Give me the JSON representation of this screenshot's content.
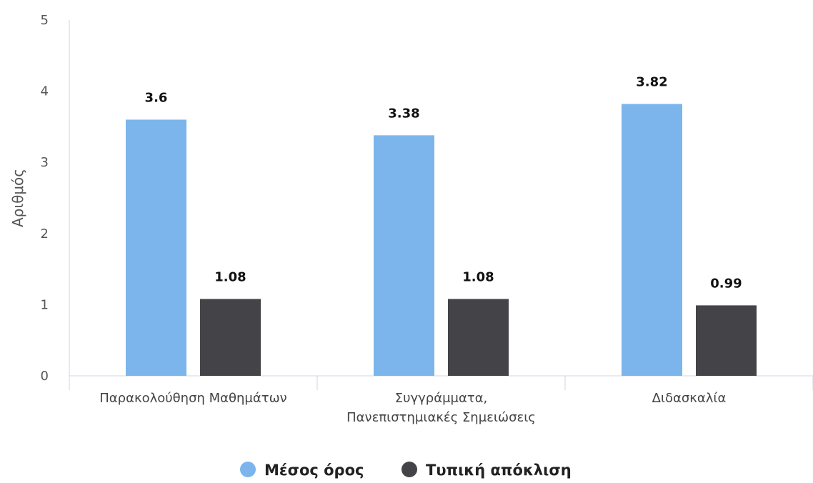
{
  "chart_data": {
    "type": "bar",
    "ylabel": "Αριθμός",
    "ylim": [
      0,
      5
    ],
    "yticks": [
      "0",
      "1",
      "2",
      "3",
      "4",
      "5"
    ],
    "categories": [
      [
        "Παρακολούθηση Μαθημάτων"
      ],
      [
        "Συγγράμματα,",
        "Πανεπιστημιακές Σημειώσεις"
      ],
      [
        "Διδασκαλία"
      ]
    ],
    "series": [
      {
        "name": "Μέσος όρος",
        "color": "#7cb5ec",
        "values": [
          3.6,
          3.38,
          3.82
        ],
        "labels": [
          "3.6",
          "3.38",
          "3.82"
        ]
      },
      {
        "name": "Τυπική απόκλιση",
        "color": "#434348",
        "values": [
          1.08,
          1.08,
          0.99
        ],
        "labels": [
          "1.08",
          "1.08",
          "0.99"
        ]
      }
    ],
    "grid": false,
    "legend": "bottom-center"
  }
}
